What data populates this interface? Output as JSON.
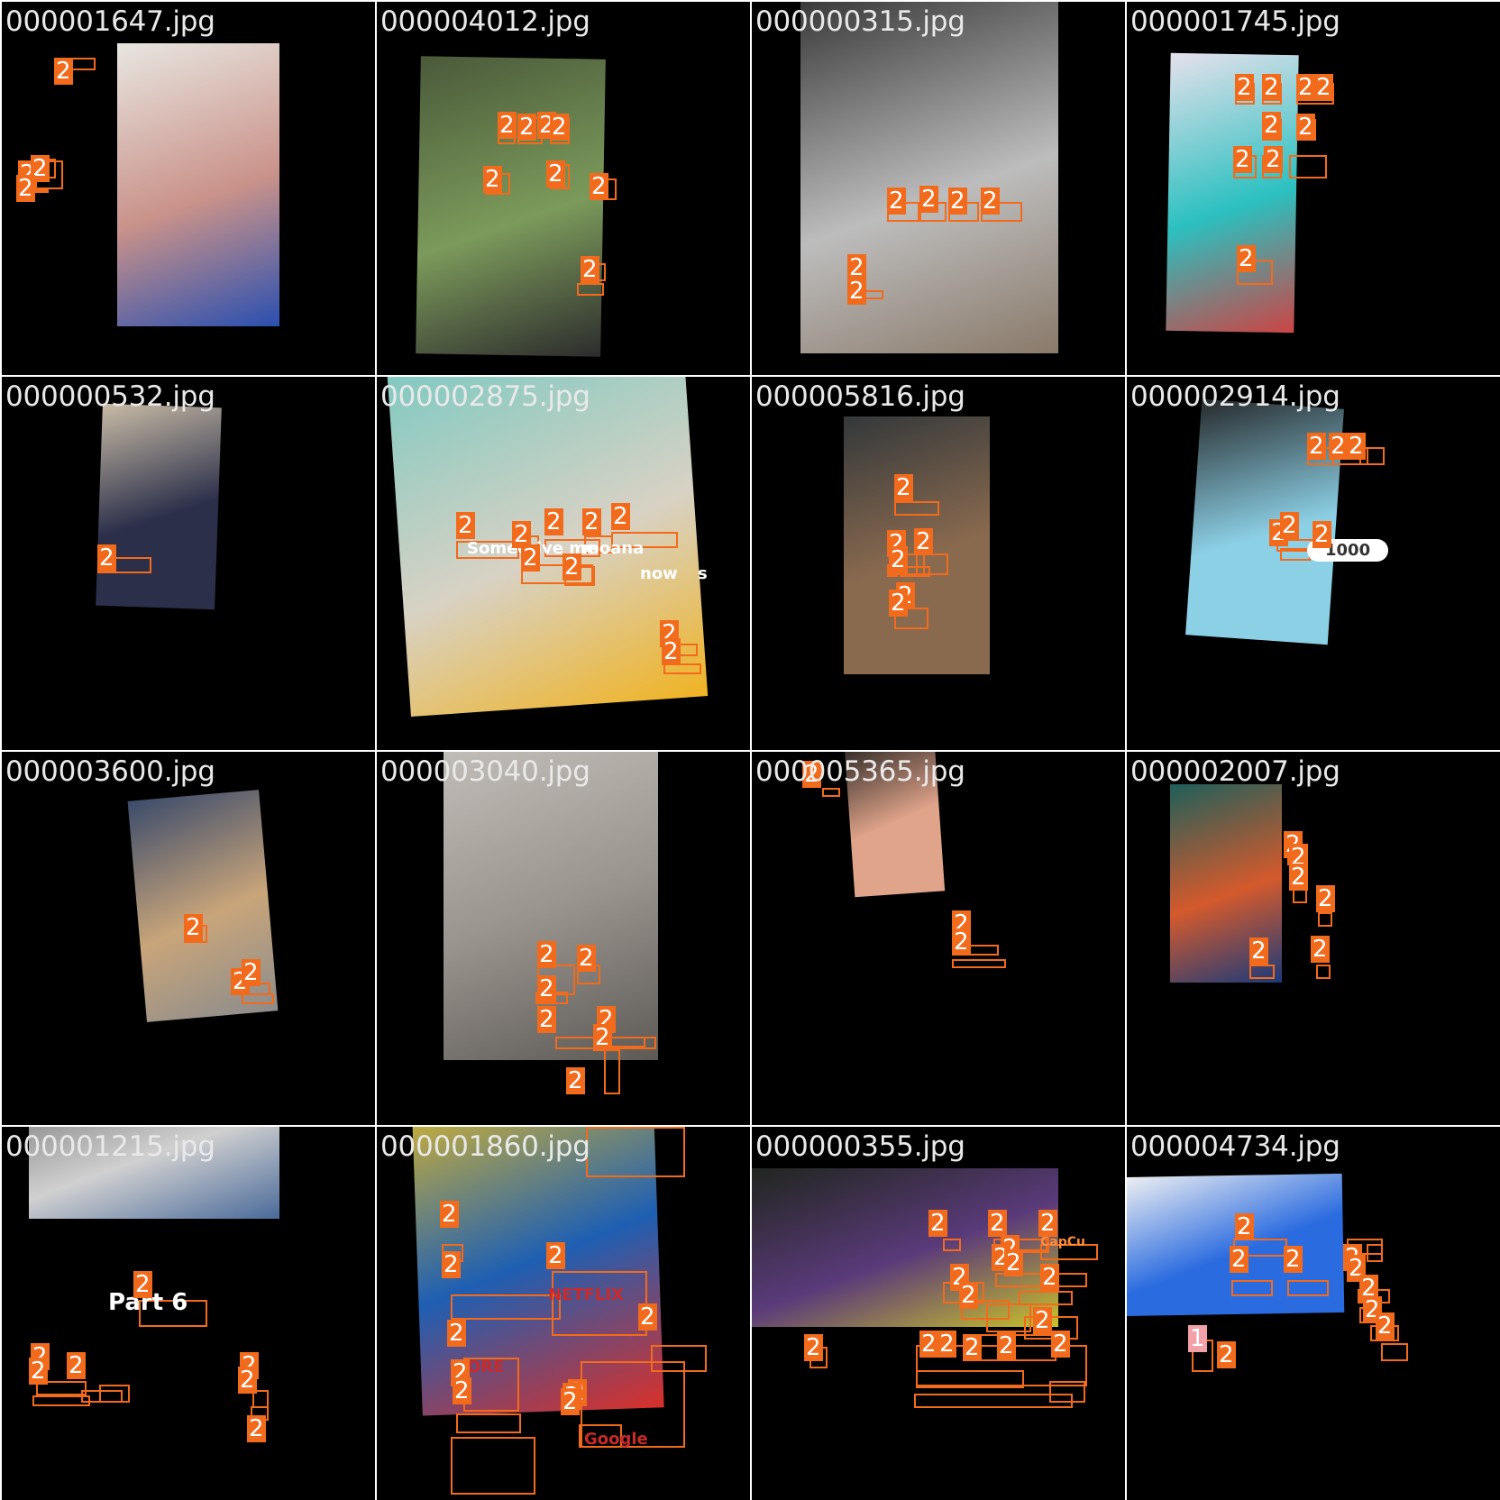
{
  "grid": {
    "background": "#ffffff",
    "tile_background": "#000000",
    "box_color": "#f26b1d",
    "tiles": [
      {
        "filename": "000001647.jpg",
        "photo_colors": [
          "#e8e6e0",
          "#c9928a",
          "#2a4fb0"
        ],
        "boxes": [
          {
            "label": "2"
          },
          {
            "label": "2"
          },
          {
            "label": "2"
          },
          {
            "label": "2"
          }
        ]
      },
      {
        "filename": "000004012.jpg",
        "photo_colors": [
          "#4a5a3a",
          "#7c9a5b",
          "#2c2c2c"
        ],
        "boxes": [
          {
            "label": "2"
          },
          {
            "label": "2"
          },
          {
            "label": "2"
          },
          {
            "label": "2"
          },
          {
            "label": "2"
          },
          {
            "label": "2"
          },
          {
            "label": "2"
          },
          {
            "label": "2"
          }
        ]
      },
      {
        "filename": "000000315.jpg",
        "photo_colors": [
          "#3a3a3a",
          "#bdbdbd",
          "#8a7a6a"
        ],
        "boxes": [
          {
            "label": "2"
          },
          {
            "label": "2"
          },
          {
            "label": "2"
          },
          {
            "label": "2"
          },
          {
            "label": "2"
          },
          {
            "label": "2"
          }
        ]
      },
      {
        "filename": "000001745.jpg",
        "photo_colors": [
          "#e6e1ec",
          "#2bc0c0",
          "#c44"
        ],
        "boxes": [
          {
            "label": "2"
          },
          {
            "label": "2"
          },
          {
            "label": "2"
          },
          {
            "label": "2"
          },
          {
            "label": "2"
          },
          {
            "label": "2"
          },
          {
            "label": "2"
          },
          {
            "label": "2"
          },
          {
            "label": "2"
          }
        ]
      },
      {
        "filename": "000000532.jpg",
        "photo_colors": [
          "#c9bca6",
          "#2b2f4a"
        ],
        "boxes": [
          {
            "label": "2"
          }
        ]
      },
      {
        "filename": "000002875.jpg",
        "photo_colors": [
          "#7ec9c1",
          "#d8d2c4",
          "#f0b323"
        ],
        "overlay_words": [
          "Someo",
          "give me",
          "moana",
          "now",
          "s"
        ],
        "boxes": [
          {
            "label": "2"
          },
          {
            "label": "2"
          },
          {
            "label": "2"
          },
          {
            "label": "2"
          },
          {
            "label": "2"
          },
          {
            "label": "2"
          },
          {
            "label": "2"
          },
          {
            "label": "2"
          },
          {
            "label": "2"
          }
        ]
      },
      {
        "filename": "000005816.jpg",
        "photo_colors": [
          "#33383a",
          "#8a6a4f"
        ],
        "boxes": [
          {
            "label": "2"
          },
          {
            "label": "2"
          },
          {
            "label": "2"
          },
          {
            "label": "2"
          },
          {
            "label": "2"
          },
          {
            "label": "2"
          }
        ]
      },
      {
        "filename": "000002914.jpg",
        "photo_colors": [
          "#262a2c",
          "#8cd0e6"
        ],
        "keypad_display": "1000",
        "boxes": [
          {
            "label": "2"
          },
          {
            "label": "2"
          },
          {
            "label": "2"
          },
          {
            "label": "2"
          },
          {
            "label": "2"
          },
          {
            "label": "2"
          }
        ]
      },
      {
        "filename": "000003600.jpg",
        "photo_colors": [
          "#3b4b6b",
          "#c9a57a",
          "#8c8c8c"
        ],
        "boxes": [
          {
            "label": "2"
          },
          {
            "label": "2"
          },
          {
            "label": "2"
          }
        ]
      },
      {
        "filename": "000003040.jpg",
        "photo_colors": [
          "#c8c4bf",
          "#9a948e",
          "#5d5a56"
        ],
        "boxes": [
          {
            "label": "2"
          },
          {
            "label": "2"
          },
          {
            "label": "2"
          },
          {
            "label": "2"
          },
          {
            "label": "2"
          },
          {
            "label": "2"
          },
          {
            "label": "2"
          }
        ]
      },
      {
        "filename": "000005365.jpg",
        "photo_colors": [
          "#1a1a1a",
          "#e0a48a"
        ],
        "boxes": [
          {
            "label": "2"
          },
          {
            "label": "2"
          },
          {
            "label": "2"
          }
        ]
      },
      {
        "filename": "000002007.jpg",
        "photo_colors": [
          "#1f5f5a",
          "#d45a2c",
          "#1a3a7a"
        ],
        "boxes": [
          {
            "label": "2"
          },
          {
            "label": "2"
          },
          {
            "label": "2"
          },
          {
            "label": "2"
          },
          {
            "label": "2"
          },
          {
            "label": "2"
          }
        ]
      },
      {
        "filename": "000001215.jpg",
        "photo_colors": [
          "#6a6a6a",
          "#d0d0d0",
          "#4a6a9a"
        ],
        "overlay_words": [
          "Part 6"
        ],
        "boxes": [
          {
            "label": "2"
          },
          {
            "label": "2"
          },
          {
            "label": "2"
          },
          {
            "label": "2"
          },
          {
            "label": "2"
          },
          {
            "label": "2"
          },
          {
            "label": "2"
          }
        ]
      },
      {
        "filename": "000001860.jpg",
        "photo_colors": [
          "#f2c21b",
          "#1e5fb3",
          "#d9302a"
        ],
        "overlay_words": [
          "NETFLIX",
          "ORE",
          "Google"
        ],
        "boxes": [
          {
            "label": "2"
          },
          {
            "label": "2"
          },
          {
            "label": "2"
          },
          {
            "label": "2"
          },
          {
            "label": "2"
          },
          {
            "label": "2"
          },
          {
            "label": "2"
          },
          {
            "label": "2"
          },
          {
            "label": "2"
          },
          {
            "label": "2"
          }
        ]
      },
      {
        "filename": "000000355.jpg",
        "photo_colors": [
          "#1c2418",
          "#5a3a7a",
          "#c9c12a"
        ],
        "overlay_words": [
          "CapCu"
        ],
        "boxes": [
          {
            "label": "2"
          },
          {
            "label": "2"
          },
          {
            "label": "2"
          },
          {
            "label": "2"
          },
          {
            "label": "2"
          },
          {
            "label": "2"
          },
          {
            "label": "2"
          },
          {
            "label": "2"
          },
          {
            "label": "2"
          },
          {
            "label": "2"
          },
          {
            "label": "2"
          },
          {
            "label": "2"
          },
          {
            "label": "2"
          },
          {
            "label": "2"
          },
          {
            "label": "2"
          },
          {
            "label": "2"
          }
        ]
      },
      {
        "filename": "000004734.jpg",
        "photo_colors": [
          "#f2f2f2",
          "#2a6be0"
        ],
        "boxes": [
          {
            "label": "2"
          },
          {
            "label": "2"
          },
          {
            "label": "2"
          },
          {
            "label": "2"
          },
          {
            "label": "2"
          },
          {
            "label": "2"
          },
          {
            "label": "2"
          },
          {
            "label": "2"
          },
          {
            "label": "2"
          },
          {
            "label": "1"
          }
        ]
      }
    ]
  }
}
